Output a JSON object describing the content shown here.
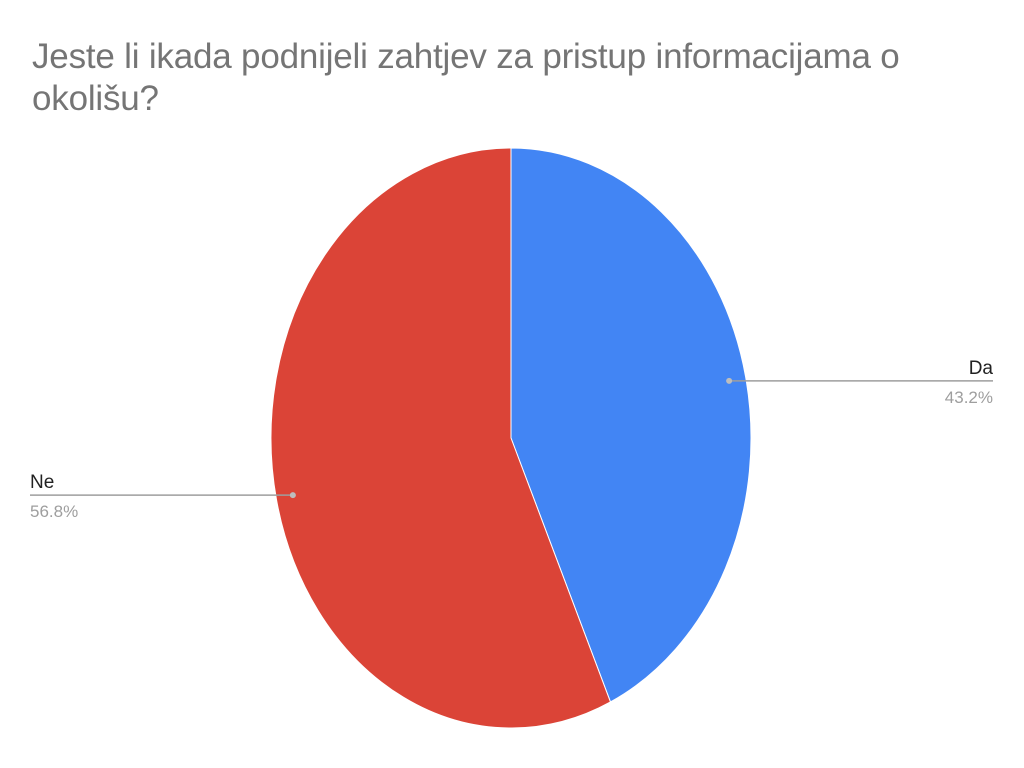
{
  "chart_data": {
    "type": "pie",
    "title": "Jeste li ikada podnijeli zahtjev za pristup informacijama o okolišu?",
    "start_angle_deg": 0,
    "direction": "clockwise",
    "slices": [
      {
        "label": "Da",
        "value": 43.2,
        "display": "43.2%",
        "color": "#4285f4",
        "label_side": "right"
      },
      {
        "label": "Ne",
        "value": 56.8,
        "display": "56.8%",
        "color": "#db4437",
        "label_side": "left"
      }
    ],
    "legend": "labels-on-slices"
  }
}
